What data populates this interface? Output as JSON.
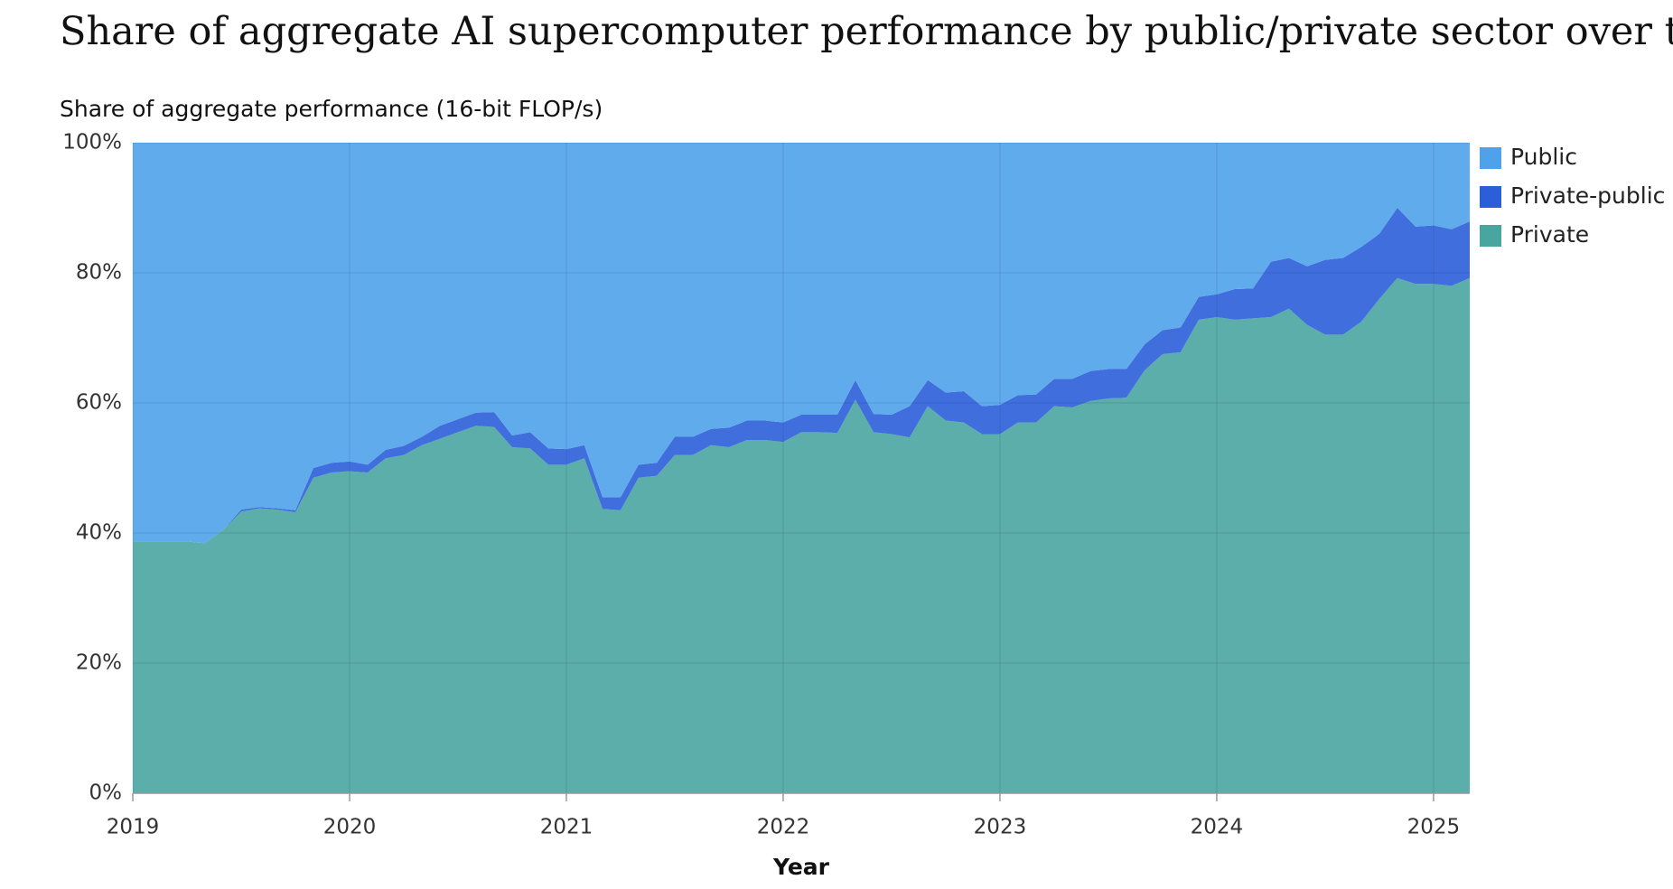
{
  "chart_data": {
    "type": "stacked_area",
    "title": "Share of aggregate AI supercomputer performance by public/private sector over time",
    "y_label": "Share of aggregate performance (16-bit FLOP/s)",
    "x_label": "Year",
    "x": [
      2019,
      2019.083,
      2019.167,
      2019.25,
      2019.333,
      2019.417,
      2019.5,
      2019.583,
      2019.667,
      2019.75,
      2019.833,
      2019.917,
      2020,
      2020.083,
      2020.167,
      2020.25,
      2020.333,
      2020.417,
      2020.5,
      2020.583,
      2020.667,
      2020.75,
      2020.833,
      2020.917,
      2021,
      2021.083,
      2021.167,
      2021.25,
      2021.333,
      2021.417,
      2021.5,
      2021.583,
      2021.667,
      2021.75,
      2021.833,
      2021.917,
      2022,
      2022.083,
      2022.167,
      2022.25,
      2022.333,
      2022.417,
      2022.5,
      2022.583,
      2022.667,
      2022.75,
      2022.833,
      2022.917,
      2023,
      2023.083,
      2023.167,
      2023.25,
      2023.333,
      2023.417,
      2023.5,
      2023.583,
      2023.667,
      2023.75,
      2023.833,
      2023.917,
      2024,
      2024.083,
      2024.167,
      2024.25,
      2024.333,
      2024.417,
      2024.5,
      2024.583,
      2024.667,
      2024.75,
      2024.833,
      2024.917,
      2025,
      2025.083,
      2025.167
    ],
    "series": [
      {
        "name": "Public",
        "color": "#4fa2ea",
        "values": [
          61.3,
          61.3,
          61.3,
          61.3,
          61.6,
          59.5,
          56.4,
          56,
          56.2,
          56.5,
          50,
          49.2,
          49,
          49.5,
          47.2,
          46.6,
          45.2,
          43.5,
          42.5,
          41.5,
          41.4,
          45,
          44.5,
          47,
          47.1,
          46.5,
          54.5,
          54.5,
          49.5,
          49.2,
          45.2,
          45.2,
          44,
          43.8,
          42.7,
          42.7,
          43,
          41.8,
          41.8,
          41.8,
          36.5,
          41.7,
          41.8,
          40.5,
          36.5,
          38.4,
          38.2,
          40.5,
          40.3,
          38.8,
          38.7,
          36.3,
          36.3,
          35.1,
          34.8,
          34.8,
          31,
          28.8,
          28.4,
          23.7,
          23.3,
          22.5,
          22.4,
          18.3,
          17.7,
          19,
          18,
          17.7,
          16,
          14,
          10,
          12.9,
          12.7,
          13.3,
          12.1
        ]
      },
      {
        "name": "Private-public",
        "color": "#2b5fd9",
        "values": [
          0,
          0,
          0,
          0,
          0,
          0,
          0.3,
          0.2,
          0.2,
          0.3,
          1.5,
          1.5,
          1.5,
          1.2,
          1.3,
          1.4,
          1.3,
          2,
          2,
          2,
          2.3,
          1.8,
          2.5,
          2.5,
          2.4,
          2,
          1.8,
          2,
          2,
          2,
          2.8,
          2.8,
          2.5,
          3,
          3,
          3,
          3,
          2.7,
          2.7,
          2.8,
          3,
          2.8,
          3,
          4.8,
          4,
          4.3,
          4.8,
          4.3,
          4.5,
          4.2,
          4.3,
          4.2,
          4.4,
          4.6,
          4.5,
          4.4,
          4,
          3.7,
          3.8,
          3.5,
          3.5,
          4.7,
          4.6,
          8.5,
          7.8,
          9,
          11.5,
          11.8,
          11.5,
          10,
          10.8,
          8.8,
          9,
          8.7,
          8.7
        ]
      },
      {
        "name": "Private",
        "color": "#49a5a0",
        "values": [
          38.7,
          38.7,
          38.7,
          38.7,
          38.4,
          40.5,
          43.3,
          43.8,
          43.6,
          43.2,
          48.5,
          49.3,
          49.5,
          49.3,
          51.5,
          52,
          53.5,
          54.5,
          55.5,
          56.5,
          56.3,
          53.2,
          53,
          50.5,
          50.5,
          51.5,
          43.7,
          43.5,
          48.5,
          48.8,
          52,
          52,
          53.5,
          53.2,
          54.3,
          54.3,
          54,
          55.5,
          55.5,
          55.4,
          60.5,
          55.5,
          55.2,
          54.7,
          59.5,
          57.3,
          57,
          55.2,
          55.2,
          57,
          57,
          59.5,
          59.3,
          60.3,
          60.7,
          60.8,
          65,
          67.5,
          67.8,
          72.8,
          73.2,
          72.8,
          73,
          73.2,
          74.5,
          72,
          70.5,
          70.5,
          72.5,
          76,
          79.2,
          78.3,
          78.3,
          78,
          79.2
        ]
      }
    ],
    "xlim": [
      2019,
      2025.167
    ],
    "xticks": [
      2019,
      2020,
      2021,
      2022,
      2023,
      2024,
      2025
    ],
    "ylim": [
      0,
      100
    ],
    "yticks": [
      {
        "value": 0,
        "label": "0%"
      },
      {
        "value": 20,
        "label": "20%"
      },
      {
        "value": 40,
        "label": "40%"
      },
      {
        "value": 60,
        "label": "60%"
      },
      {
        "value": 80,
        "label": "80%"
      },
      {
        "value": 100,
        "label": "100%"
      }
    ],
    "grid": true,
    "legend": "right"
  }
}
